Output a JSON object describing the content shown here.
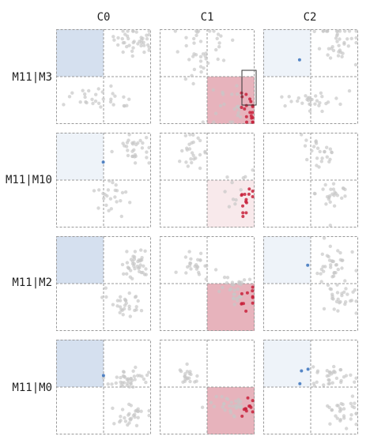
{
  "chart_data": {
    "type": "scatter",
    "title": "",
    "columns": [
      "C0",
      "C1",
      "C2"
    ],
    "rows": [
      "M11|M3",
      "M11|M10",
      "M11|M2",
      "M11|M0"
    ],
    "quadrant_layout": "each cell is split into 2x2 quadrants; grey points = background, colored points = selected cluster",
    "colors": {
      "blue_point": "#3a72bd",
      "red_point": "#c8223c",
      "grey_point": "#c8c8c8",
      "blue_shade": "#c7d6ea",
      "red_shade": "#e3a6b0",
      "border": "#999999"
    },
    "cells": [
      {
        "row": 0,
        "col": 0,
        "shade_quadrant": "top-left",
        "shade_color": "blue",
        "shade_opacity": 0.75,
        "highlight": "blue",
        "clusters": [
          {
            "cx": 0.85,
            "cy": 0.12,
            "sx": 0.12,
            "sy": 0.08,
            "n": 40
          },
          {
            "cx": 0.45,
            "cy": 0.72,
            "sx": 0.18,
            "sy": 0.06,
            "n": 30
          }
        ]
      },
      {
        "row": 0,
        "col": 1,
        "shade_quadrant": "bottom-right",
        "shade_color": "red",
        "shade_opacity": 0.85,
        "highlight": "red",
        "brush": true,
        "clusters": [
          {
            "cx": 0.45,
            "cy": 0.2,
            "sx": 0.15,
            "sy": 0.15,
            "n": 40
          },
          {
            "cx": 0.8,
            "cy": 0.85,
            "sx": 0.15,
            "sy": 0.15,
            "n": 40
          }
        ]
      },
      {
        "row": 0,
        "col": 2,
        "shade_quadrant": "top-left",
        "shade_color": "blue",
        "shade_opacity": 0.3,
        "highlight": "blue",
        "clusters": [
          {
            "cx": 0.8,
            "cy": 0.15,
            "sx": 0.12,
            "sy": 0.15,
            "n": 40
          },
          {
            "cx": 0.5,
            "cy": 0.75,
            "sx": 0.15,
            "sy": 0.05,
            "n": 30
          }
        ]
      },
      {
        "row": 1,
        "col": 0,
        "shade_quadrant": "top-left",
        "shade_color": "blue",
        "shade_opacity": 0.3,
        "highlight": "blue",
        "clusters": [
          {
            "cx": 0.82,
            "cy": 0.18,
            "sx": 0.08,
            "sy": 0.08,
            "n": 30
          },
          {
            "cx": 0.6,
            "cy": 0.65,
            "sx": 0.1,
            "sy": 0.1,
            "n": 25
          }
        ]
      },
      {
        "row": 1,
        "col": 1,
        "shade_quadrant": "bottom-right",
        "shade_color": "red",
        "shade_opacity": 0.25,
        "highlight": "red",
        "clusters": [
          {
            "cx": 0.35,
            "cy": 0.2,
            "sx": 0.08,
            "sy": 0.08,
            "n": 25
          },
          {
            "cx": 0.85,
            "cy": 0.65,
            "sx": 0.1,
            "sy": 0.1,
            "n": 25
          }
        ]
      },
      {
        "row": 1,
        "col": 2,
        "shade_quadrant": "none",
        "shade_color": "none",
        "shade_opacity": 0,
        "highlight": "none",
        "clusters": [
          {
            "cx": 0.6,
            "cy": 0.2,
            "sx": 0.1,
            "sy": 0.1,
            "n": 25
          },
          {
            "cx": 0.75,
            "cy": 0.65,
            "sx": 0.1,
            "sy": 0.1,
            "n": 25
          }
        ]
      },
      {
        "row": 2,
        "col": 0,
        "shade_quadrant": "top-left",
        "shade_color": "blue",
        "shade_opacity": 0.75,
        "highlight": "blue",
        "clusters": [
          {
            "cx": 0.82,
            "cy": 0.28,
            "sx": 0.08,
            "sy": 0.08,
            "n": 40
          },
          {
            "cx": 0.75,
            "cy": 0.7,
            "sx": 0.1,
            "sy": 0.06,
            "n": 30
          }
        ]
      },
      {
        "row": 2,
        "col": 1,
        "shade_quadrant": "bottom-right",
        "shade_color": "red",
        "shade_opacity": 0.85,
        "highlight": "red",
        "clusters": [
          {
            "cx": 0.4,
            "cy": 0.3,
            "sx": 0.08,
            "sy": 0.08,
            "n": 25
          },
          {
            "cx": 0.85,
            "cy": 0.6,
            "sx": 0.1,
            "sy": 0.08,
            "n": 40
          }
        ]
      },
      {
        "row": 2,
        "col": 2,
        "shade_quadrant": "top-left",
        "shade_color": "blue",
        "shade_opacity": 0.3,
        "highlight": "blue",
        "clusters": [
          {
            "cx": 0.7,
            "cy": 0.3,
            "sx": 0.1,
            "sy": 0.08,
            "n": 35
          },
          {
            "cx": 0.8,
            "cy": 0.65,
            "sx": 0.1,
            "sy": 0.08,
            "n": 30
          }
        ]
      },
      {
        "row": 3,
        "col": 0,
        "shade_quadrant": "top-left",
        "shade_color": "blue",
        "shade_opacity": 0.75,
        "highlight": "blue",
        "clusters": [
          {
            "cx": 0.75,
            "cy": 0.4,
            "sx": 0.12,
            "sy": 0.06,
            "n": 40
          },
          {
            "cx": 0.8,
            "cy": 0.8,
            "sx": 0.12,
            "sy": 0.08,
            "n": 30
          }
        ]
      },
      {
        "row": 3,
        "col": 1,
        "shade_quadrant": "bottom-right",
        "shade_color": "red",
        "shade_opacity": 0.85,
        "highlight": "red",
        "clusters": [
          {
            "cx": 0.3,
            "cy": 0.4,
            "sx": 0.06,
            "sy": 0.05,
            "n": 20
          },
          {
            "cx": 0.8,
            "cy": 0.7,
            "sx": 0.12,
            "sy": 0.06,
            "n": 40
          }
        ]
      },
      {
        "row": 3,
        "col": 2,
        "shade_quadrant": "top-left",
        "shade_color": "blue",
        "shade_opacity": 0.3,
        "highlight": "blue",
        "clusters": [
          {
            "cx": 0.7,
            "cy": 0.4,
            "sx": 0.12,
            "sy": 0.06,
            "n": 35
          },
          {
            "cx": 0.8,
            "cy": 0.75,
            "sx": 0.12,
            "sy": 0.08,
            "n": 30
          }
        ]
      }
    ]
  }
}
